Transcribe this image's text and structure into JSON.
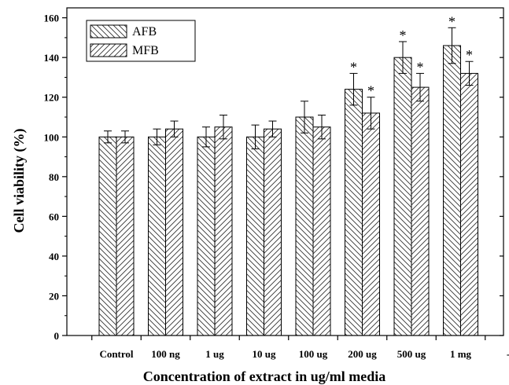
{
  "chart_data": {
    "type": "bar",
    "title": "",
    "xlabel": "Concentration of extract in ug/ml media",
    "ylabel": "Cell viability (%)",
    "ylim": [
      0,
      165
    ],
    "yticks": [
      0,
      20,
      40,
      60,
      80,
      100,
      120,
      140,
      160
    ],
    "categories": [
      "Control",
      "100 ng",
      "1 ug",
      "10 ug",
      "100 ug",
      "200 ug",
      "500 ug",
      "1 mg"
    ],
    "extra_tick_label": "-",
    "grid": false,
    "legend": {
      "position": "top-left"
    },
    "significance_marker": "*",
    "series": [
      {
        "name": "AFB",
        "values": [
          100,
          100,
          100,
          100,
          110,
          124,
          140,
          146
        ],
        "errors": [
          3,
          4,
          5,
          6,
          8,
          8,
          8,
          9
        ],
        "significant": [
          false,
          false,
          false,
          false,
          false,
          true,
          true,
          true
        ],
        "pattern": "hatch-back"
      },
      {
        "name": "MFB",
        "values": [
          100,
          104,
          105,
          104,
          105,
          112,
          125,
          132
        ],
        "errors": [
          3,
          4,
          6,
          4,
          6,
          8,
          7,
          6
        ],
        "significant": [
          false,
          false,
          false,
          false,
          false,
          true,
          true,
          true
        ],
        "pattern": "hatch-forward"
      }
    ]
  }
}
